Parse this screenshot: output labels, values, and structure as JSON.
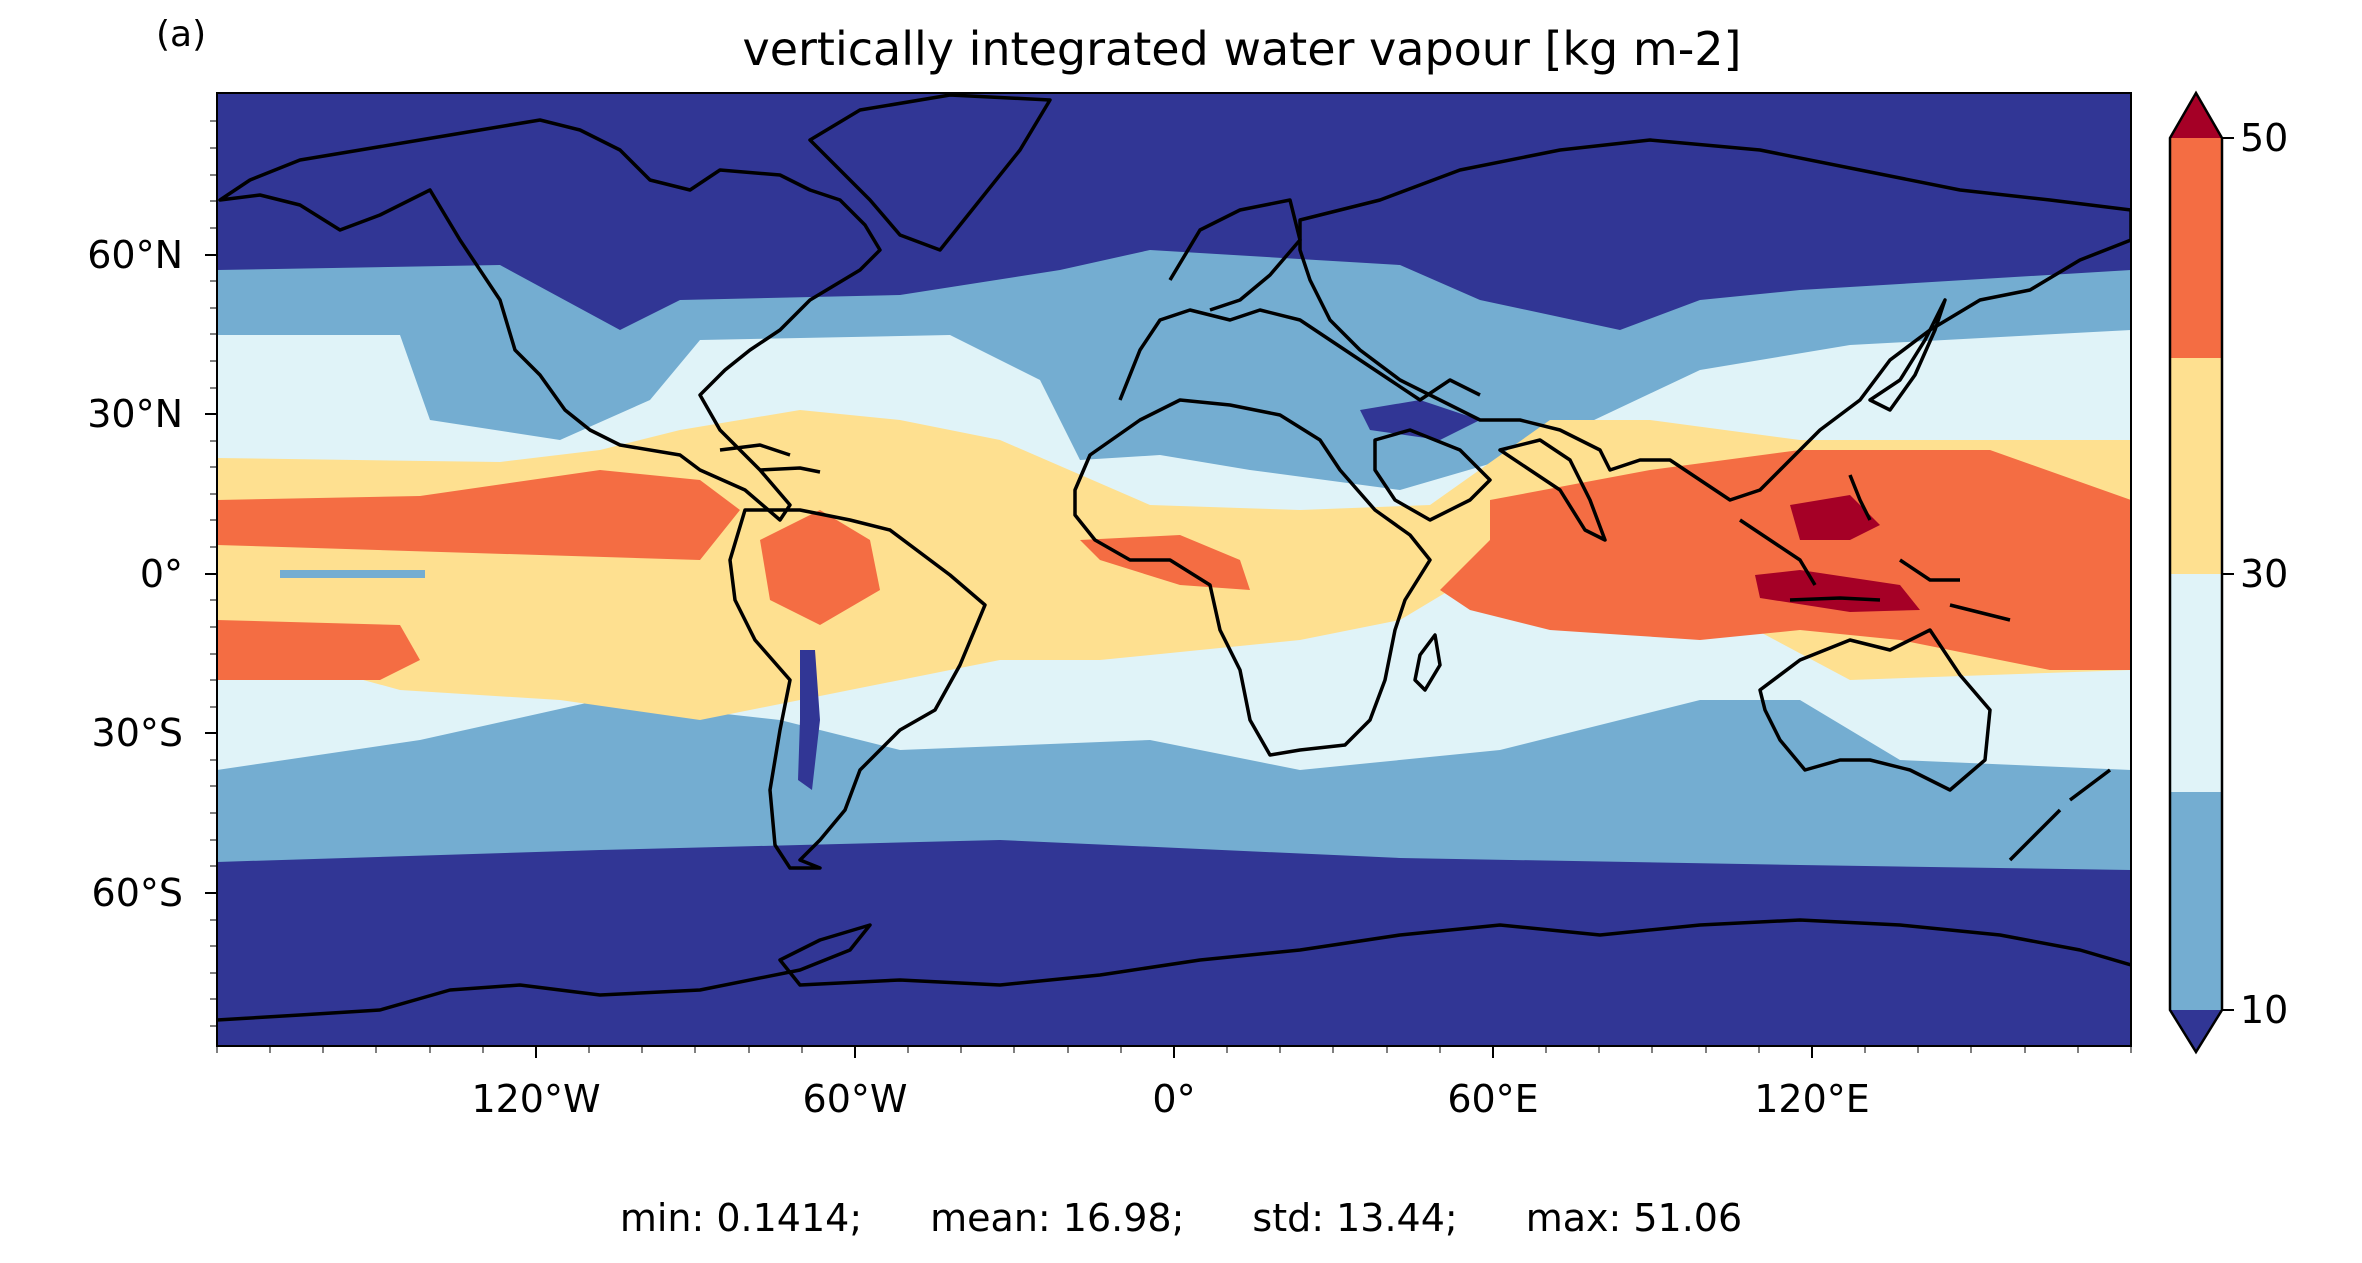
{
  "figure": {
    "panel_label": "(a)",
    "title": "vertically integrated water vapour [kg m-2]",
    "lat_ticks": [
      "60°N",
      "30°N",
      "0°",
      "30°S",
      "60°S"
    ],
    "lon_ticks": [
      "120°W",
      "60°W",
      "0°",
      "60°E",
      "120°E"
    ],
    "stats": {
      "min": "min: 0.1414;",
      "mean": "mean: 16.98;",
      "std": "std: 13.44;",
      "max": "max: 51.06"
    }
  },
  "colorbar": {
    "tick_labels": [
      "50",
      "30",
      "10"
    ],
    "colors": {
      "under": "#313695",
      "c1": "#74add1",
      "c2": "#e0f3f8",
      "c3": "#fee090",
      "c4": "#f46d43",
      "over": "#a50026"
    }
  },
  "map_colors": {
    "band_polar": "#313695",
    "band_subpolar": "#74add1",
    "band_midlat": "#e0f3f8",
    "band_subtropic": "#fee090",
    "band_tropic": "#f46d43",
    "band_max": "#a50026",
    "coastline": "#000000"
  }
}
